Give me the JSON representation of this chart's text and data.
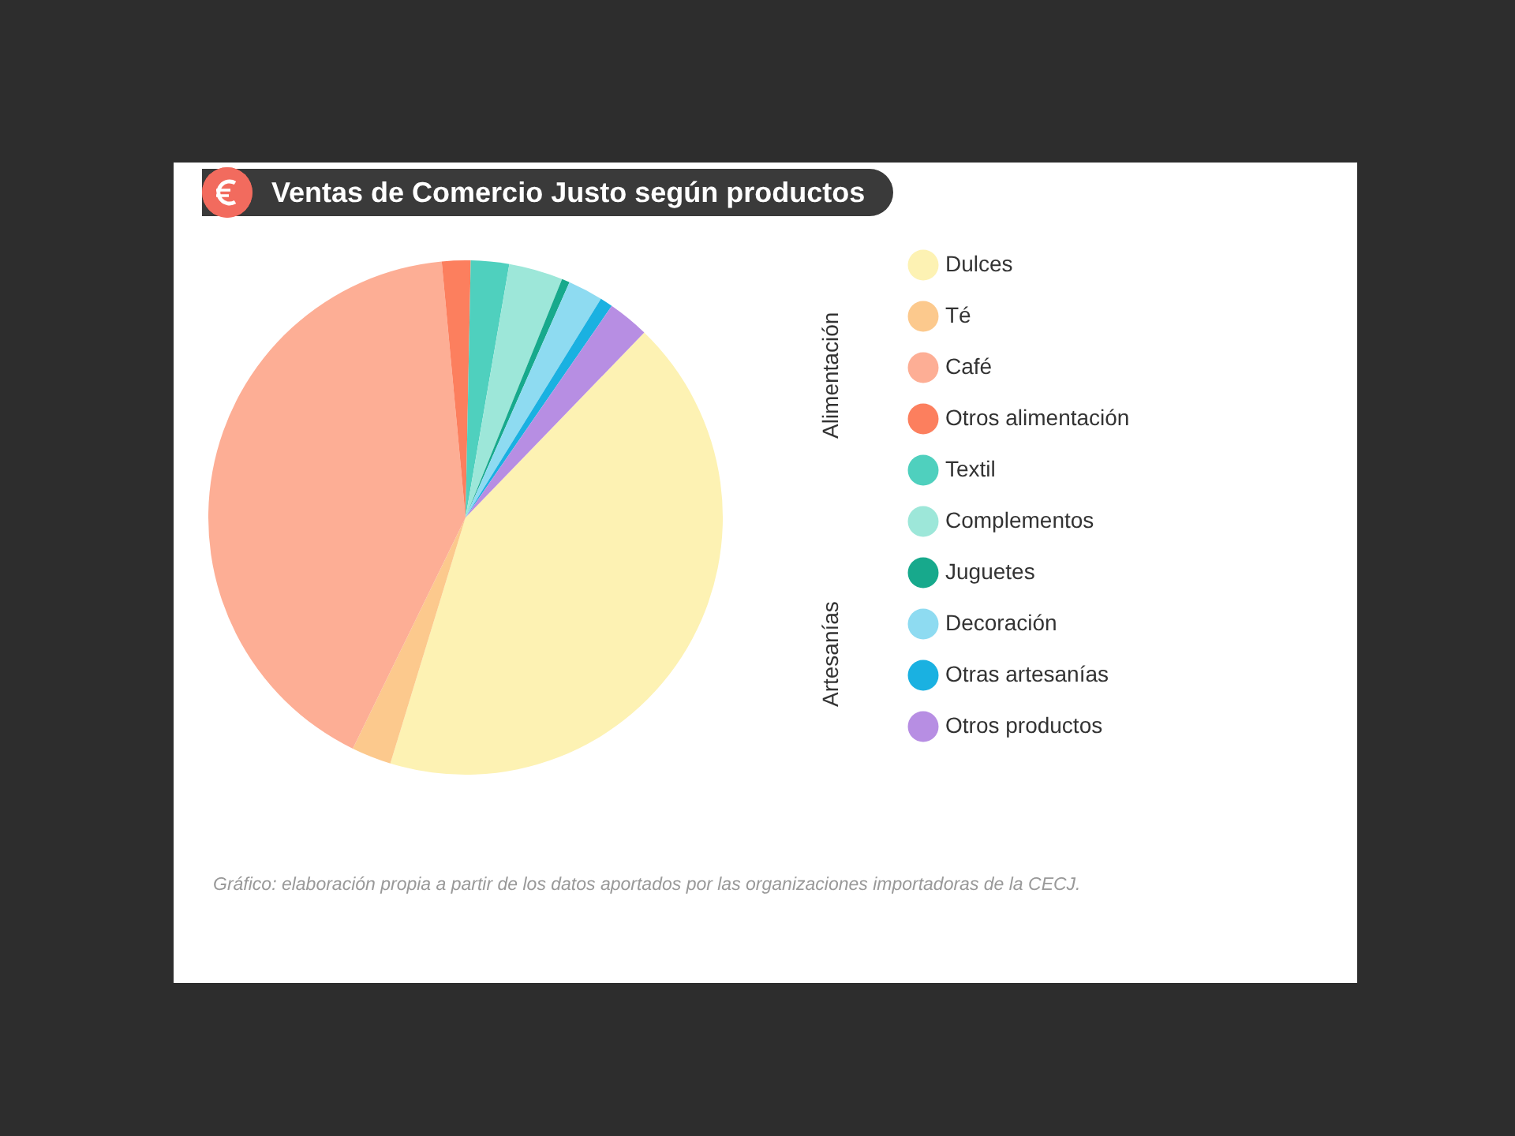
{
  "chart_data": {
    "type": "pie",
    "title": "Ventas de Comercio Justo según productos",
    "categories": [
      "Dulces",
      "Té",
      "Café",
      "Otros alimentación",
      "Textil",
      "Complementos",
      "Juguetes",
      "Decoración",
      "Otras artesanías",
      "Otros productos"
    ],
    "values": [
      42.5,
      2.5,
      41.3,
      1.8,
      2.4,
      3.4,
      0.5,
      2.2,
      0.8,
      2.6
    ],
    "colors": [
      "#fdf2b3",
      "#fcc98d",
      "#fdae95",
      "#fc7f5e",
      "#4fd0be",
      "#9de7d9",
      "#17a98c",
      "#8edbf1",
      "#1ab1e1",
      "#b78ee3"
    ],
    "legend": "right",
    "annotations": [
      "Alimentación",
      "Artesanías",
      "Gráfico: elaboración propia a partir de los datos aportados por las organizaciones importadoras de la CECJ."
    ]
  }
}
